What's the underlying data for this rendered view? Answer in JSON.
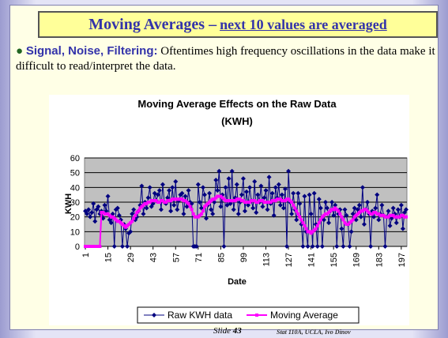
{
  "slide": {
    "title": "Moving Averages –",
    "title_emphasis": "next 10 values are averaged",
    "bullet_heading": "Signal, Noise, Filtering:",
    "bullet_text": "Oftentimes high frequency oscillations in the data make it difficult to read/interpret the data.",
    "footer_slide": "Slide",
    "footer_number": 43,
    "footer_credit": "Stat 110A, UCLA, Ivo Dinov"
  },
  "chart_data": {
    "type": "line",
    "title": "Moving Average Effects on the Raw Data",
    "subtitle": "(KWH)",
    "x_label": "Date",
    "y_label": "KWH",
    "x": [
      1,
      2,
      3,
      4,
      5,
      6,
      7,
      8,
      9,
      10,
      11,
      12,
      13,
      14,
      15,
      16,
      17,
      18,
      19,
      20,
      21,
      22,
      23,
      24,
      25,
      26,
      27,
      28,
      29,
      30,
      31,
      32,
      33,
      34,
      35,
      36,
      37,
      38,
      39,
      40,
      41,
      42,
      43,
      44,
      45,
      46,
      47,
      48,
      49,
      50,
      51,
      52,
      53,
      54,
      55,
      56,
      57,
      58,
      59,
      60,
      61,
      62,
      63,
      64,
      65,
      66,
      67,
      68,
      69,
      70,
      71,
      72,
      73,
      74,
      75,
      76,
      77,
      78,
      79,
      80,
      81,
      82,
      83,
      84,
      85,
      86,
      87,
      88,
      89,
      90,
      91,
      92,
      93,
      94,
      95,
      96,
      97,
      98,
      99,
      100,
      101,
      102,
      103,
      104,
      105,
      106,
      107,
      108,
      109,
      110,
      111,
      112,
      113,
      114,
      115,
      116,
      117,
      118,
      119,
      120,
      121,
      122,
      123,
      124,
      125,
      126,
      127,
      128,
      129,
      130,
      131,
      132,
      133,
      134,
      135,
      136,
      137,
      138,
      139,
      140,
      141,
      142,
      143,
      144,
      145,
      146,
      147,
      148,
      149,
      150,
      151,
      152,
      153,
      154,
      155,
      156,
      157,
      158,
      159,
      160,
      161,
      162,
      163,
      164,
      165,
      166,
      167,
      168,
      169,
      170,
      171,
      172,
      173,
      174,
      175,
      176,
      177,
      178,
      179,
      180,
      181,
      182,
      183,
      184,
      185,
      186,
      187,
      188,
      189,
      190,
      191,
      192,
      193,
      194,
      195,
      196,
      197,
      198,
      199,
      200
    ],
    "xlim": [
      0.5,
      200.5
    ],
    "xticks": [
      1,
      15,
      29,
      43,
      57,
      71,
      85,
      99,
      113,
      127,
      141,
      155,
      169,
      183,
      197
    ],
    "ylim": [
      0,
      60
    ],
    "yticks": [
      0,
      10,
      20,
      30,
      40,
      50,
      60
    ],
    "grid": true,
    "legend": "bottom",
    "series": [
      {
        "name": "Raw KWH data",
        "color": "#000080",
        "marker": "diamond",
        "values": [
          24,
          22,
          25,
          20,
          23,
          29,
          17,
          25,
          27,
          22,
          24,
          19,
          28,
          24,
          34,
          18,
          16,
          22,
          0,
          25,
          26,
          21,
          18,
          0,
          15,
          12,
          0,
          9,
          10,
          22,
          25,
          18,
          20,
          24,
          28,
          41,
          22,
          30,
          26,
          33,
          40,
          27,
          29,
          36,
          31,
          35,
          38,
          25,
          42,
          30,
          29,
          33,
          38,
          24,
          40,
          28,
          44,
          25,
          31,
          35,
          36,
          22,
          34,
          27,
          38,
          30,
          29,
          0,
          0,
          0,
          42,
          30,
          26,
          40,
          35,
          19,
          28,
          36,
          25,
          22,
          30,
          45,
          38,
          51,
          27,
          35,
          0,
          40,
          28,
          46,
          29,
          51,
          25,
          33,
          42,
          22,
          30,
          35,
          46,
          24,
          37,
          28,
          40,
          31,
          26,
          44,
          23,
          35,
          30,
          41,
          27,
          33,
          38,
          25,
          47,
          29,
          36,
          21,
          40,
          33,
          42,
          28,
          35,
          26,
          39,
          0,
          51,
          30,
          22,
          36,
          25,
          18,
          36,
          29,
          15,
          0,
          34,
          10,
          0,
          35,
          22,
          0,
          36,
          15,
          0,
          32,
          26,
          0,
          18,
          30,
          26,
          16,
          24,
          30,
          21,
          28,
          0,
          22,
          25,
          12,
          0,
          25,
          21,
          15,
          0,
          10,
          22,
          26,
          18,
          25,
          28,
          20,
          40,
          15,
          25,
          30,
          22,
          0,
          24,
          20,
          26,
          35,
          18,
          22,
          28,
          21,
          0,
          20,
          24,
          14,
          19,
          26,
          22,
          16,
          25,
          20,
          28,
          12,
          23,
          25
        ]
      },
      {
        "name": "Moving Average",
        "color": "#ff00ff",
        "marker": "square",
        "values": [
          0,
          0,
          0,
          0,
          0,
          0,
          0,
          0,
          0,
          0,
          23,
          23,
          22,
          22,
          22,
          21,
          20,
          20,
          19,
          18,
          17,
          17,
          16,
          15,
          14,
          13,
          14,
          15,
          16,
          17,
          19,
          21,
          23,
          24,
          26,
          27,
          28,
          29,
          29,
          30,
          30,
          31,
          31,
          31,
          31,
          30,
          30,
          31,
          31,
          30,
          30,
          31,
          31,
          31,
          32,
          32,
          32,
          32,
          32,
          32,
          32,
          31,
          31,
          30,
          29,
          27,
          25,
          22,
          20,
          20,
          20,
          21,
          22,
          24,
          27,
          28,
          29,
          30,
          31,
          32,
          32,
          33,
          34,
          34,
          34,
          33,
          32,
          31,
          31,
          31,
          31,
          31,
          31,
          31,
          32,
          32,
          32,
          31,
          31,
          30,
          30,
          30,
          30,
          31,
          31,
          31,
          30,
          30,
          31,
          31,
          31,
          30,
          30,
          30,
          30,
          30,
          31,
          31,
          31,
          32,
          32,
          32,
          31,
          31,
          31,
          32,
          32,
          31,
          30,
          28,
          26,
          24,
          22,
          20,
          18,
          16,
          14,
          12,
          10,
          10,
          9,
          10,
          11,
          12,
          14,
          16,
          18,
          20,
          21,
          22,
          22,
          23,
          24,
          25,
          25,
          26,
          25,
          24,
          22,
          20,
          18,
          16,
          15,
          15,
          16,
          17,
          18,
          20,
          21,
          22,
          23,
          24,
          24,
          25,
          25,
          24,
          23,
          22,
          22,
          23,
          23,
          22,
          22,
          21,
          21,
          21,
          20,
          20,
          20,
          21,
          21,
          21,
          20,
          20,
          20,
          20,
          21,
          21,
          20,
          20
        ]
      }
    ]
  }
}
